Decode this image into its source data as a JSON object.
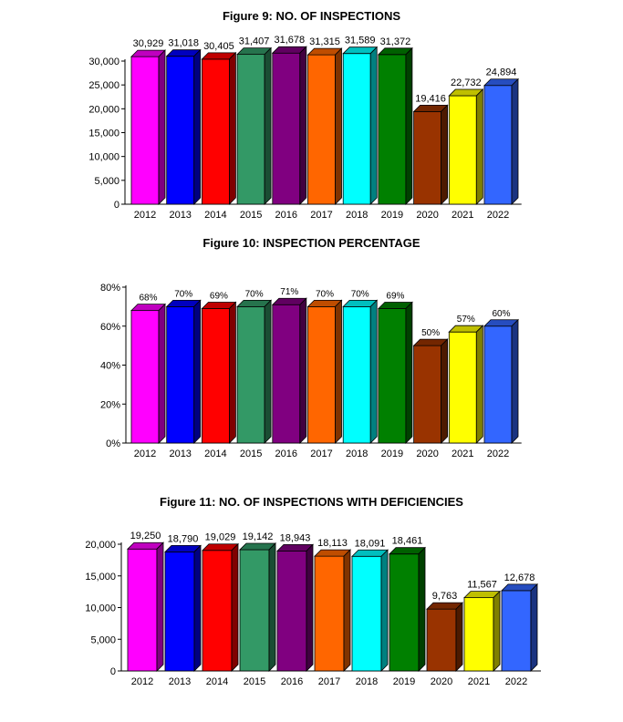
{
  "chart_data": [
    {
      "type": "bar",
      "title": "Figure 9: NO. OF INSPECTIONS",
      "categories": [
        "2012",
        "2013",
        "2014",
        "2015",
        "2016",
        "2017",
        "2018",
        "2019",
        "2020",
        "2021",
        "2022"
      ],
      "values": [
        30929,
        31018,
        30405,
        31407,
        31678,
        31315,
        31589,
        31372,
        19416,
        22732,
        24894
      ],
      "value_labels": [
        "30,929",
        "31,018",
        "30,405",
        "31,407",
        "31,678",
        "31,315",
        "31,589",
        "31,372",
        "19,416",
        "22,732",
        "24,894"
      ],
      "yticks": [
        "0",
        "5,000",
        "10,000",
        "15,000",
        "20,000",
        "25,000",
        "30,000"
      ],
      "ylim": [
        0,
        30000
      ],
      "grid": false,
      "legend": "none"
    },
    {
      "type": "bar",
      "title": "Figure 10: INSPECTION PERCENTAGE",
      "categories": [
        "2012",
        "2013",
        "2014",
        "2015",
        "2016",
        "2017",
        "2018",
        "2019",
        "2020",
        "2021",
        "2022"
      ],
      "values": [
        68,
        70,
        69,
        70,
        71,
        70,
        70,
        69,
        50,
        57,
        60
      ],
      "value_labels": [
        "68%",
        "70%",
        "69%",
        "70%",
        "71%",
        "70%",
        "70%",
        "69%",
        "50%",
        "57%",
        "60%"
      ],
      "yticks": [
        "0%",
        "20%",
        "40%",
        "60%",
        "80%"
      ],
      "ylim": [
        0,
        80
      ],
      "grid": false,
      "legend": "none"
    },
    {
      "type": "bar",
      "title": "Figure 11: NO. OF INSPECTIONS WITH DEFICIENCIES",
      "categories": [
        "2012",
        "2013",
        "2014",
        "2015",
        "2016",
        "2017",
        "2018",
        "2019",
        "2020",
        "2021",
        "2022"
      ],
      "values": [
        19250,
        18790,
        19029,
        19142,
        18943,
        18113,
        18091,
        18461,
        9763,
        11567,
        12678
      ],
      "value_labels": [
        "19,250",
        "18,790",
        "19,029",
        "19,142",
        "18,943",
        "18,113",
        "18,091",
        "18,461",
        "9,763",
        "11,567",
        "12,678"
      ],
      "yticks": [
        "0",
        "5,000",
        "10,000",
        "15,000",
        "20,000"
      ],
      "ylim": [
        0,
        20000
      ],
      "grid": false,
      "legend": "none"
    }
  ],
  "colors": [
    "#ff00ff",
    "#0000ff",
    "#ff0000",
    "#339966",
    "#800080",
    "#ff6600",
    "#00ffff",
    "#008000",
    "#993300",
    "#ffff00",
    "#3366ff"
  ]
}
